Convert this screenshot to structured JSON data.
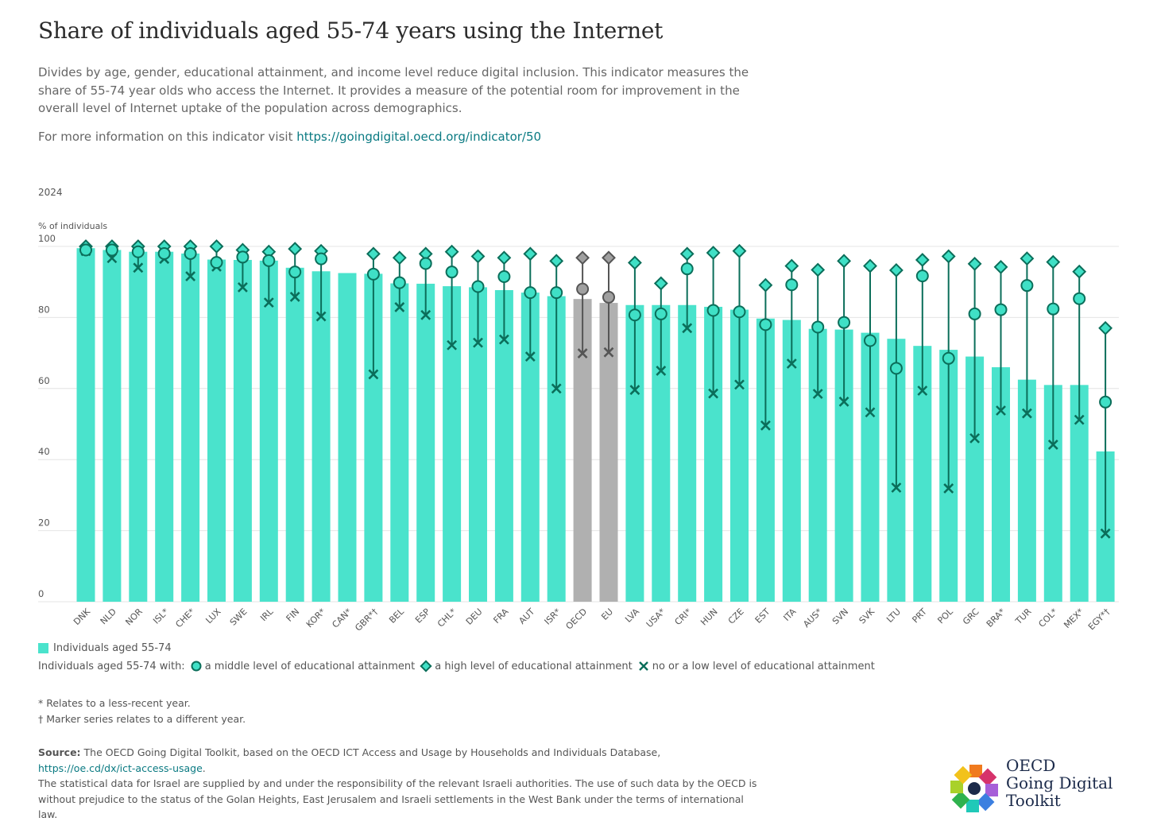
{
  "title": "Share of individuals aged 55-74 years using the Internet",
  "description": "Divides by age, gender, educational attainment, and income level reduce digital inclusion. This indicator measures the share of 55-74 year olds who access the Internet. It provides a measure of the potential room for improvement in the overall level of Internet uptake of the population across demographics.",
  "more_info_prefix": "For more information on this indicator visit",
  "more_info_link": "https://goingdigital.oecd.org/indicator/50",
  "year_label": "2024",
  "colors": {
    "bar": "#4ae3cc",
    "bar_aggregate": "#b0b0b0",
    "marker_fill": "#3fe0c6",
    "marker_stroke": "#0b6e5a",
    "marker_fill_aggregate": "#a0a0a0",
    "marker_stroke_aggregate": "#555555",
    "grid": "#e4e4e4"
  },
  "chart_data": {
    "type": "bar",
    "ylabel": "% of individuals",
    "ylim": [
      0,
      100
    ],
    "yticks": [
      0,
      20,
      40,
      60,
      80,
      100
    ],
    "grid": true,
    "categories": [
      "DNK",
      "NLD",
      "NOR",
      "ISL*",
      "CHE*",
      "LUX",
      "SWE",
      "IRL",
      "FIN",
      "KOR*",
      "CAN*",
      "GBR*†",
      "BEL",
      "ESP",
      "CHL*",
      "DEU",
      "FRA",
      "AUT",
      "ISR*",
      "OECD",
      "EU",
      "LVA",
      "USA*",
      "CRI*",
      "HUN",
      "CZE",
      "EST",
      "ITA",
      "AUS*",
      "SVN",
      "SVK",
      "LTU",
      "PRT",
      "POL",
      "GRC",
      "BRA*",
      "TUR",
      "COL*",
      "MEX*",
      "EGY*†"
    ],
    "aggregates": [
      "OECD",
      "EU"
    ],
    "series": [
      {
        "name": "Individuals aged 55-74",
        "kind": "bar",
        "values": [
          99.5,
          99,
          98.5,
          98.5,
          98,
          96.3,
          96.2,
          96,
          94,
          93,
          92.5,
          92.3,
          89.6,
          89.5,
          88.8,
          88.5,
          87.7,
          87,
          86,
          85.2,
          84.1,
          83.5,
          83.5,
          83.5,
          83,
          82.2,
          79.7,
          79.3,
          76.8,
          76.6,
          75.7,
          74,
          72,
          70.9,
          69,
          66,
          62.5,
          61,
          61,
          42.3
        ]
      },
      {
        "name": "a middle level of educational attainment",
        "kind": "circle",
        "values": [
          99,
          99,
          98.5,
          98,
          98,
          95.5,
          97,
          96,
          92.8,
          96.5,
          null,
          92.2,
          89.8,
          95.2,
          92.8,
          88.7,
          91.5,
          87,
          87,
          88,
          85.7,
          80.7,
          81,
          93.7,
          82,
          81.6,
          78,
          89.2,
          77.3,
          78.6,
          73.5,
          65.7,
          91.7,
          68.5,
          81,
          82.2,
          89,
          82.4,
          85.3,
          56.2
        ]
      },
      {
        "name": "a high level of educational attainment",
        "kind": "diamond",
        "values": [
          100,
          100,
          100,
          100,
          100,
          100,
          99,
          98.5,
          99.3,
          98.7,
          null,
          97.9,
          96.8,
          97.9,
          98.5,
          97.2,
          96.8,
          97.9,
          95.9,
          96.8,
          96.8,
          95.4,
          89.6,
          97.9,
          98.2,
          98.7,
          89.1,
          94.5,
          93.4,
          95.9,
          94.5,
          93.3,
          96.2,
          97.2,
          95.1,
          94.2,
          96.6,
          95.6,
          92.9,
          77
        ]
      },
      {
        "name": "no or a low level of educational attainment",
        "kind": "cross",
        "values": [
          98.7,
          96.7,
          94,
          96.5,
          91.6,
          94.3,
          88.5,
          84.2,
          85.8,
          80.3,
          null,
          64,
          82.9,
          80.7,
          72.2,
          72.9,
          73.8,
          69,
          60,
          69.9,
          70.2,
          59.6,
          65,
          77,
          58.6,
          61.1,
          49.6,
          67,
          58.5,
          56.3,
          53.3,
          32.1,
          59.4,
          31.9,
          46,
          53.8,
          53,
          44.2,
          51.2,
          19.2
        ]
      }
    ]
  },
  "legend": {
    "bar_label": "Individuals aged 55-74",
    "markers_prefix": "Individuals aged 55-74 with:",
    "middle_label": "a middle level of educational attainment",
    "high_label": "a high level of educational attainment",
    "low_label": "no or a low level of educational attainment"
  },
  "notes": {
    "asterisk": "* Relates to a less-recent year.",
    "dagger": "† Marker series relates to a different year."
  },
  "source": {
    "label": "Source:",
    "text": "The OECD Going Digital Toolkit, based on the OECD ICT Access and Usage by Households and Individuals Database,",
    "link": "https://oe.cd/dx/ict-access-usage",
    "link_suffix": ".",
    "israel_note": "The statistical data for Israel are supplied by and under the responsibility of the relevant Israeli authorities. The use of such data by the OECD is without prejudice to the status of the Golan Heights, East Jerusalem and Israeli settlements in the West Bank under the terms of international law."
  },
  "logo": {
    "line1": "OECD",
    "line2": "Going Digital",
    "line3": "Toolkit"
  }
}
